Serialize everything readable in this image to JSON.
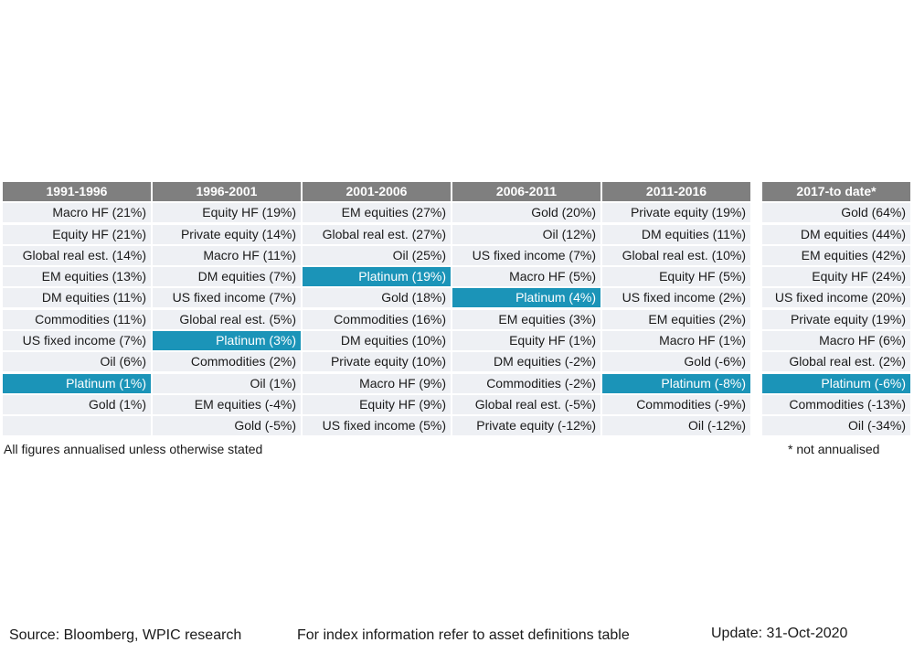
{
  "chart_data": {
    "type": "table",
    "highlight_asset": "Platinum",
    "highlight_color": "#1b94b8",
    "header_color": "#7f7f7f",
    "columns": [
      {
        "header": "1991-1996",
        "rows": [
          "Macro HF (21%)",
          "Equity HF (21%)",
          "Global real est. (14%)",
          "EM equities (13%)",
          "DM equities (11%)",
          "Commodities (11%)",
          "US fixed income (7%)",
          "Oil (6%)",
          "Platinum (1%)",
          "Gold (1%)",
          ""
        ]
      },
      {
        "header": "1996-2001",
        "rows": [
          "Equity HF (19%)",
          "Private equity (14%)",
          "Macro HF (11%)",
          "DM equities (7%)",
          "US fixed income (7%)",
          "Global real est. (5%)",
          "Platinum (3%)",
          "Commodities (2%)",
          "Oil (1%)",
          "EM equities (-4%)",
          "Gold (-5%)"
        ]
      },
      {
        "header": "2001-2006",
        "rows": [
          "EM equities (27%)",
          "Global real est. (27%)",
          "Oil (25%)",
          "Platinum (19%)",
          "Gold (18%)",
          "Commodities (16%)",
          "DM equities (10%)",
          "Private equity (10%)",
          "Macro HF (9%)",
          "Equity HF (9%)",
          "US fixed income (5%)"
        ]
      },
      {
        "header": "2006-2011",
        "rows": [
          "Gold (20%)",
          "Oil (12%)",
          "US fixed income (7%)",
          "Macro HF (5%)",
          "Platinum (4%)",
          "EM equities (3%)",
          "Equity HF (1%)",
          "DM equities (-2%)",
          "Commodities (-2%)",
          "Global real est. (-5%)",
          "Private equity (-12%)"
        ]
      },
      {
        "header": "2011-2016",
        "rows": [
          "Private equity (19%)",
          "DM equities (11%)",
          "Global real est. (10%)",
          "Equity HF (5%)",
          "US fixed income (2%)",
          "EM equities (2%)",
          "Macro HF (1%)",
          "Gold (-6%)",
          "Platinum (-8%)",
          "Commodities (-9%)",
          "Oil (-12%)"
        ]
      },
      {
        "header": "2017-to date*",
        "rows": [
          "Gold (64%)",
          "DM equities (44%)",
          "EM equities (42%)",
          "Equity HF (24%)",
          "US fixed income (20%)",
          "Private equity (19%)",
          "Macro HF (6%)",
          "Global real est. (2%)",
          "Platinum (-6%)",
          "Commodities (-13%)",
          "Oil (-34%)"
        ]
      }
    ]
  },
  "footnotes": {
    "left": "All figures annualised unless otherwise stated",
    "right": "* not annualised"
  },
  "bottom": {
    "source": "Source: Bloomberg, WPIC research",
    "index_info": "For index information refer to asset definitions table",
    "update": "Update: 31-Oct-2020"
  }
}
